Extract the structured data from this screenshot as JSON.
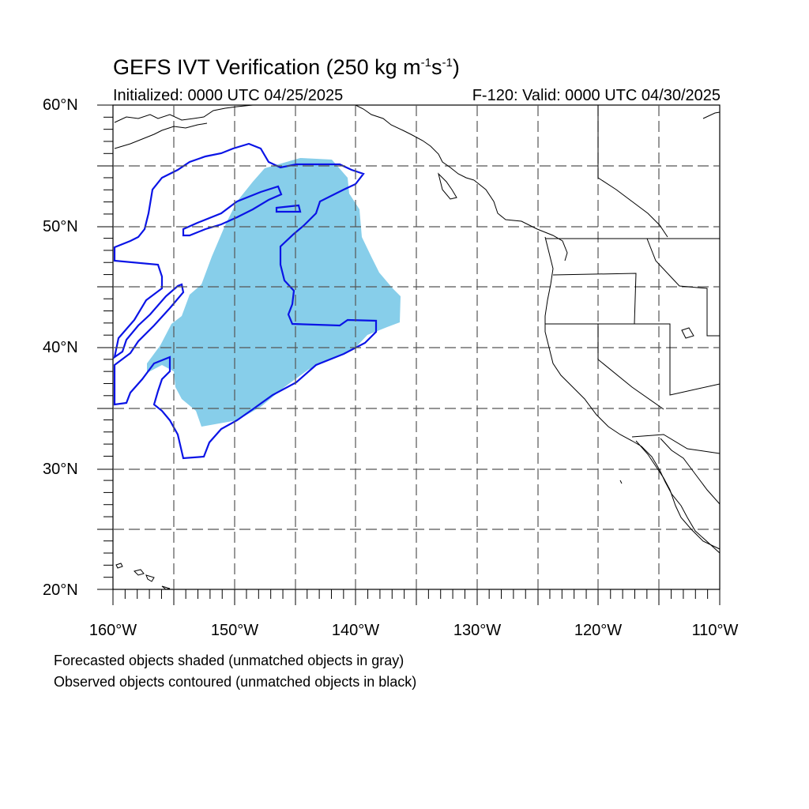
{
  "title": {
    "main": "GEFS IVT Verification (250 kg m",
    "sup1": "-1",
    "mid": "s",
    "sup2": "-1",
    "end": ")"
  },
  "subtitle_left": "Initialized: 0000 UTC 04/25/2025",
  "subtitle_right": "F-120: Valid: 0000 UTC 04/30/2025",
  "lat_labels": [
    "60°N",
    "50°N",
    "40°N",
    "30°N",
    "20°N"
  ],
  "lon_labels": [
    "160°W",
    "150°W",
    "140°W",
    "130°W",
    "120°W",
    "110°W"
  ],
  "notes": [
    "Forecasted objects shaded (unmatched objects in gray)",
    "Observed objects contoured (unmatched objects in black)"
  ],
  "colors": {
    "forecast_fill": "#87ceea",
    "observed_contour": "#0a14e6",
    "coastline": "#000000",
    "grid": "#555555"
  }
}
